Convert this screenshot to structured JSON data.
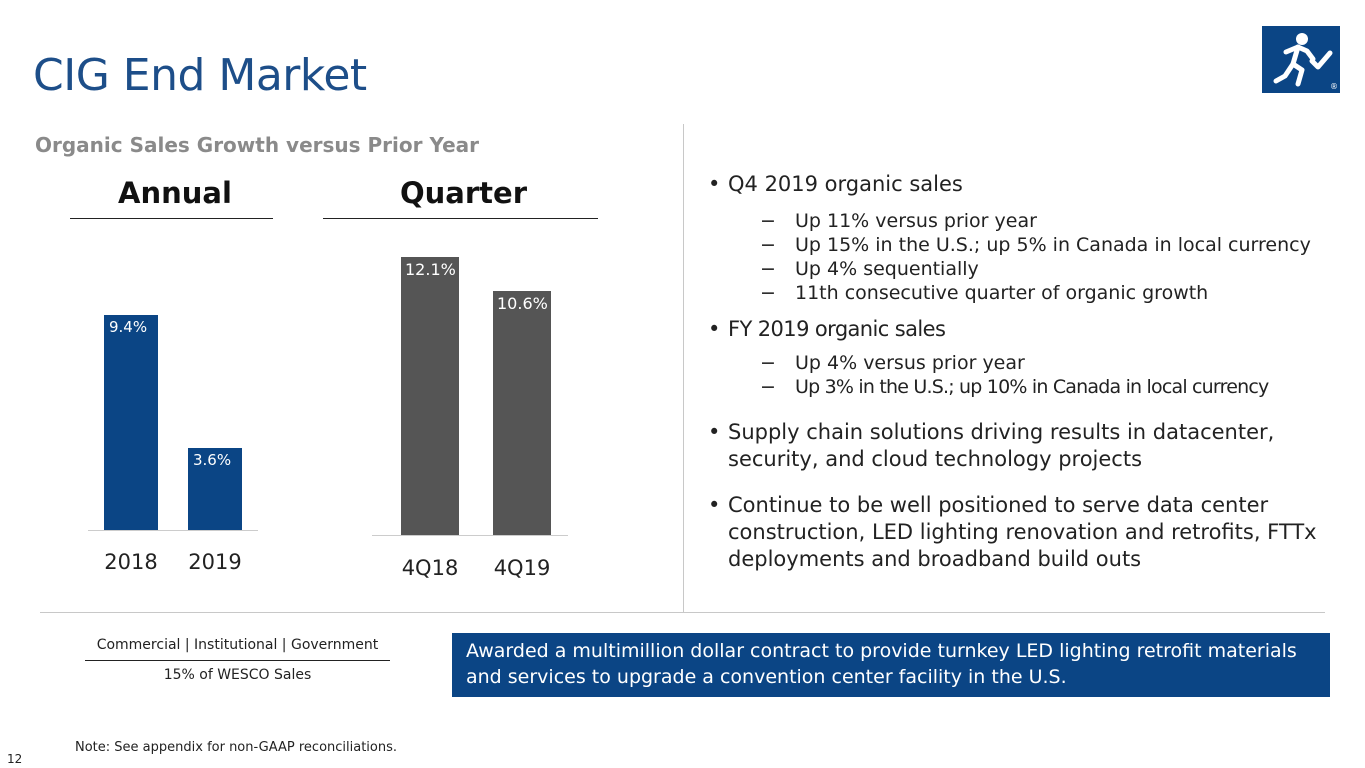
{
  "header": {
    "title": "CIG End Market",
    "logo_icon": "running-figure-checkmark-icon",
    "logo_registered": "®",
    "brand_color": "#0b4585"
  },
  "subtitle": "Organic Sales Growth versus Prior Year",
  "chart_data": [
    {
      "type": "bar",
      "title": "Annual",
      "categories": [
        "2018",
        "2019"
      ],
      "values": [
        9.4,
        3.6
      ],
      "value_labels": [
        "9.4%",
        "3.6%"
      ],
      "unit": "%",
      "color": "#0b4585"
    },
    {
      "type": "bar",
      "title": "Quarter",
      "categories": [
        "4Q18",
        "4Q19"
      ],
      "values": [
        12.1,
        10.6
      ],
      "value_labels": [
        "12.1%",
        "10.6%"
      ],
      "unit": "%",
      "color": "#555555"
    }
  ],
  "bullets": [
    {
      "text": "Q4 2019 organic sales",
      "sub": [
        "Up 11% versus prior year",
        "Up 15% in the U.S.; up 5% in Canada in local currency",
        "Up 4% sequentially",
        "11th consecutive quarter of organic growth"
      ]
    },
    {
      "text": "FY 2019 organic sales",
      "sub": [
        "Up 4% versus prior year",
        "Up 3% in the U.S.; up 10% in Canada in local currency"
      ]
    },
    {
      "lines": [
        "Supply chain solutions driving results in datacenter,",
        "security, and cloud technology projects"
      ]
    },
    {
      "lines": [
        "Continue to be well positioned to serve data center",
        "construction, LED lighting renovation and retrofits, FTTx",
        "deployments and broadband build outs"
      ]
    }
  ],
  "bullet_symbol": "•",
  "sub_symbol": "−",
  "segment": {
    "label": "Commercial | Institutional  |  Government",
    "sales": "15% of WESCO Sales"
  },
  "callout": {
    "lines": [
      "Awarded a multimillion dollar contract to provide turnkey LED lighting retrofit materials",
      "and services to upgrade a convention center facility in the U.S."
    ]
  },
  "footer": {
    "note": "Note: See appendix for non-GAAP reconciliations.",
    "page": "12"
  }
}
